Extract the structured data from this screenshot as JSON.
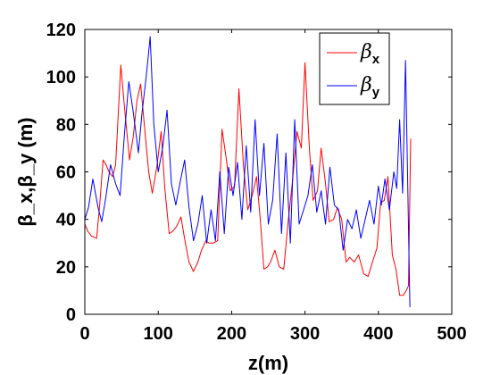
{
  "chart_data": {
    "type": "line",
    "title": "",
    "xlabel": "z(m)",
    "ylabel": "β_x,β_y (m)",
    "xlim": [
      0,
      500
    ],
    "ylim": [
      0,
      120
    ],
    "xticks": [
      0,
      100,
      200,
      300,
      400,
      500
    ],
    "yticks": [
      0,
      20,
      40,
      60,
      80,
      100,
      120
    ],
    "grid": false,
    "legend": {
      "position": "top-right",
      "entries": [
        {
          "symbol": "β",
          "subscript": "x",
          "color": "#ff0000"
        },
        {
          "symbol": "β",
          "subscript": "y",
          "color": "#0000ff"
        }
      ]
    },
    "series": [
      {
        "key": "beta_x",
        "color": "#ff0000",
        "x": [
          0,
          4,
          9,
          16,
          20,
          25,
          29,
          33,
          38,
          42,
          49,
          55,
          61,
          66,
          71,
          76,
          81,
          87,
          92,
          98,
          104,
          109,
          115,
          120,
          125,
          131,
          137,
          142,
          148,
          154,
          159,
          165,
          169,
          175,
          181,
          187,
          193,
          198,
          204,
          210,
          216,
          222,
          228,
          234,
          239,
          244,
          249,
          253,
          259,
          265,
          271,
          277,
          283,
          289,
          295,
          300,
          306,
          311,
          317,
          322,
          328,
          333,
          339,
          344,
          350,
          356,
          361,
          367,
          373,
          380,
          386,
          392,
          398,
          403,
          408,
          413,
          419,
          424,
          429,
          434,
          438,
          441
        ],
        "y": [
          38,
          35,
          33,
          32,
          45,
          65,
          63,
          60,
          58,
          63,
          105,
          84,
          65,
          75,
          90,
          97,
          80,
          60,
          51,
          62,
          77,
          53,
          34,
          35,
          37,
          41,
          30,
          22,
          18,
          22,
          27,
          31,
          30,
          30,
          31,
          78,
          65,
          52,
          54,
          95,
          63,
          44,
          50,
          58,
          40,
          19,
          20,
          22,
          27,
          20,
          19,
          39,
          56,
          77,
          70,
          106,
          70,
          48,
          52,
          70,
          55,
          39,
          40,
          45,
          40,
          22,
          24,
          22,
          25,
          17,
          16,
          22,
          28,
          47,
          48,
          58,
          25,
          19,
          8,
          8,
          10,
          12
        ]
      },
      {
        "key": "beta_x_tail",
        "color": "#ff0000",
        "x": [
          441,
          444
        ],
        "y": [
          12,
          74
        ]
      },
      {
        "key": "beta_y",
        "color": "#0000ff",
        "x": [
          0,
          5,
          11,
          18,
          23,
          28,
          35,
          42,
          48,
          54,
          60,
          66,
          73,
          78,
          84,
          89,
          94,
          100,
          106,
          112,
          118,
          124,
          130,
          136,
          142,
          148,
          154,
          160,
          166,
          172,
          178,
          184,
          190,
          196,
          202,
          208,
          214,
          220,
          226,
          232,
          238,
          244,
          250,
          256,
          262,
          268,
          274,
          280,
          286,
          292,
          298,
          304,
          310,
          316,
          322,
          328,
          334,
          340,
          346,
          352,
          358,
          364,
          370,
          376,
          382,
          388,
          394,
          400,
          404,
          409,
          415,
          421,
          425,
          429,
          433,
          437,
          440,
          443
        ],
        "y": [
          40,
          45,
          57,
          45,
          39,
          48,
          63,
          55,
          50,
          76,
          98,
          85,
          68,
          85,
          101,
          117,
          80,
          60,
          70,
          86,
          55,
          46,
          56,
          65,
          45,
          31,
          38,
          50,
          30,
          44,
          31,
          60,
          34,
          62,
          50,
          64,
          40,
          71,
          43,
          82,
          50,
          72,
          38,
          48,
          76,
          34,
          68,
          30,
          82,
          38,
          44,
          50,
          63,
          43,
          52,
          38,
          62,
          46,
          44,
          27,
          40,
          36,
          44,
          32,
          40,
          48,
          38,
          54,
          46,
          57,
          44,
          60,
          53,
          82,
          51,
          107,
          54,
          3
        ]
      }
    ]
  }
}
